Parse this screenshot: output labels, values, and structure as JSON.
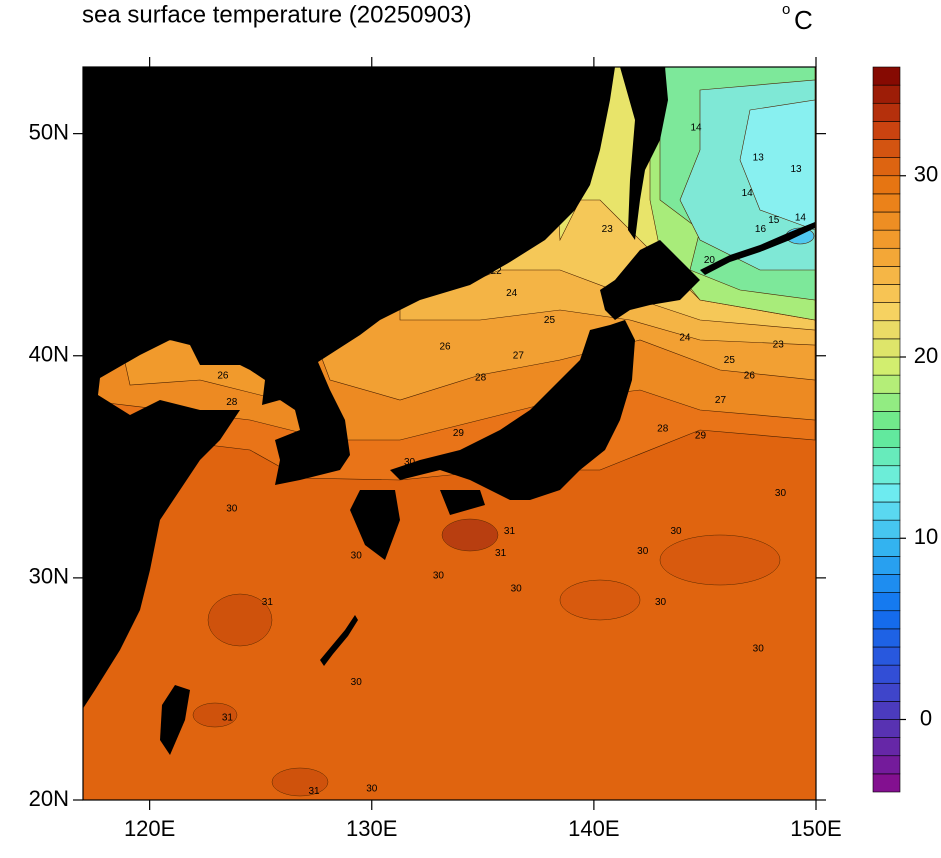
{
  "map": {
    "title": "sea surface temperature (20250903)",
    "unit_degree": "o",
    "unit": "C",
    "xlim": [
      117,
      150
    ],
    "ylim": [
      20,
      53
    ],
    "xticks": [
      {
        "value": 120,
        "label": "120E"
      },
      {
        "value": 130,
        "label": "130E"
      },
      {
        "value": 140,
        "label": "140E"
      },
      {
        "value": 150,
        "label": "150E"
      }
    ],
    "yticks": [
      {
        "value": 20,
        "label": "20N"
      },
      {
        "value": 30,
        "label": "30N"
      },
      {
        "value": 40,
        "label": "40N"
      },
      {
        "value": 50,
        "label": "50N"
      }
    ],
    "colorbar": {
      "clim": [
        -4,
        36
      ],
      "nlevels": 40,
      "ticks": [
        0,
        10,
        20,
        30
      ],
      "colormap": [
        "#8a0a8a",
        "#5a30b0",
        "#3050d8",
        "#1070f0",
        "#30b0f0",
        "#70eef0",
        "#60e890",
        "#d0f070",
        "#f8d060",
        "#f2a030",
        "#e87812",
        "#c84010",
        "#7a0000"
      ]
    },
    "contour_labels": [
      {
        "value": 14,
        "lon": 144.6,
        "lat": 50.25
      },
      {
        "value": 13,
        "lon": 147.4,
        "lat": 48.9
      },
      {
        "value": 13,
        "lon": 149.1,
        "lat": 48.4
      },
      {
        "value": 14,
        "lon": 146.9,
        "lat": 47.3
      },
      {
        "value": 15,
        "lon": 148.1,
        "lat": 46.1
      },
      {
        "value": 14,
        "lon": 149.3,
        "lat": 46.2
      },
      {
        "value": 16,
        "lon": 147.5,
        "lat": 45.7
      },
      {
        "value": 23,
        "lon": 140.6,
        "lat": 45.7
      },
      {
        "value": 20,
        "lon": 145.2,
        "lat": 44.3
      },
      {
        "value": 22,
        "lon": 135.6,
        "lat": 43.8
      },
      {
        "value": 24,
        "lon": 136.3,
        "lat": 42.8
      },
      {
        "value": 25,
        "lon": 138.0,
        "lat": 41.6
      },
      {
        "value": 26,
        "lon": 133.3,
        "lat": 40.4
      },
      {
        "value": 27,
        "lon": 136.6,
        "lat": 40.0
      },
      {
        "value": 28,
        "lon": 134.9,
        "lat": 39.0
      },
      {
        "value": 26,
        "lon": 123.3,
        "lat": 39.1
      },
      {
        "value": 28,
        "lon": 123.7,
        "lat": 37.9
      },
      {
        "value": 29,
        "lon": 133.9,
        "lat": 36.5
      },
      {
        "value": 30,
        "lon": 131.7,
        "lat": 35.2
      },
      {
        "value": 24,
        "lon": 144.1,
        "lat": 40.8
      },
      {
        "value": 23,
        "lon": 148.3,
        "lat": 40.5
      },
      {
        "value": 25,
        "lon": 146.1,
        "lat": 39.8
      },
      {
        "value": 26,
        "lon": 147.0,
        "lat": 39.1
      },
      {
        "value": 27,
        "lon": 145.7,
        "lat": 38.0
      },
      {
        "value": 28,
        "lon": 143.1,
        "lat": 36.7
      },
      {
        "value": 29,
        "lon": 144.8,
        "lat": 36.4
      },
      {
        "value": 30,
        "lon": 148.4,
        "lat": 33.8
      },
      {
        "value": 30,
        "lon": 143.7,
        "lat": 32.1
      },
      {
        "value": 30,
        "lon": 142.2,
        "lat": 31.2
      },
      {
        "value": 31,
        "lon": 136.2,
        "lat": 32.1
      },
      {
        "value": 31,
        "lon": 135.8,
        "lat": 31.1
      },
      {
        "value": 31,
        "lon": 125.3,
        "lat": 28.9
      },
      {
        "value": 31,
        "lon": 123.5,
        "lat": 23.7
      },
      {
        "value": 30,
        "lon": 129.3,
        "lat": 25.3
      },
      {
        "value": 30,
        "lon": 123.7,
        "lat": 33.1
      },
      {
        "value": 30,
        "lon": 129.3,
        "lat": 31.0
      },
      {
        "value": 30,
        "lon": 133.0,
        "lat": 30.1
      },
      {
        "value": 30,
        "lon": 136.5,
        "lat": 29.5
      },
      {
        "value": 30,
        "lon": 143.0,
        "lat": 28.9
      },
      {
        "value": 30,
        "lon": 147.4,
        "lat": 26.8
      },
      {
        "value": 31,
        "lon": 127.4,
        "lat": 20.4
      },
      {
        "value": 30,
        "lon": 130.0,
        "lat": 20.5
      }
    ]
  }
}
